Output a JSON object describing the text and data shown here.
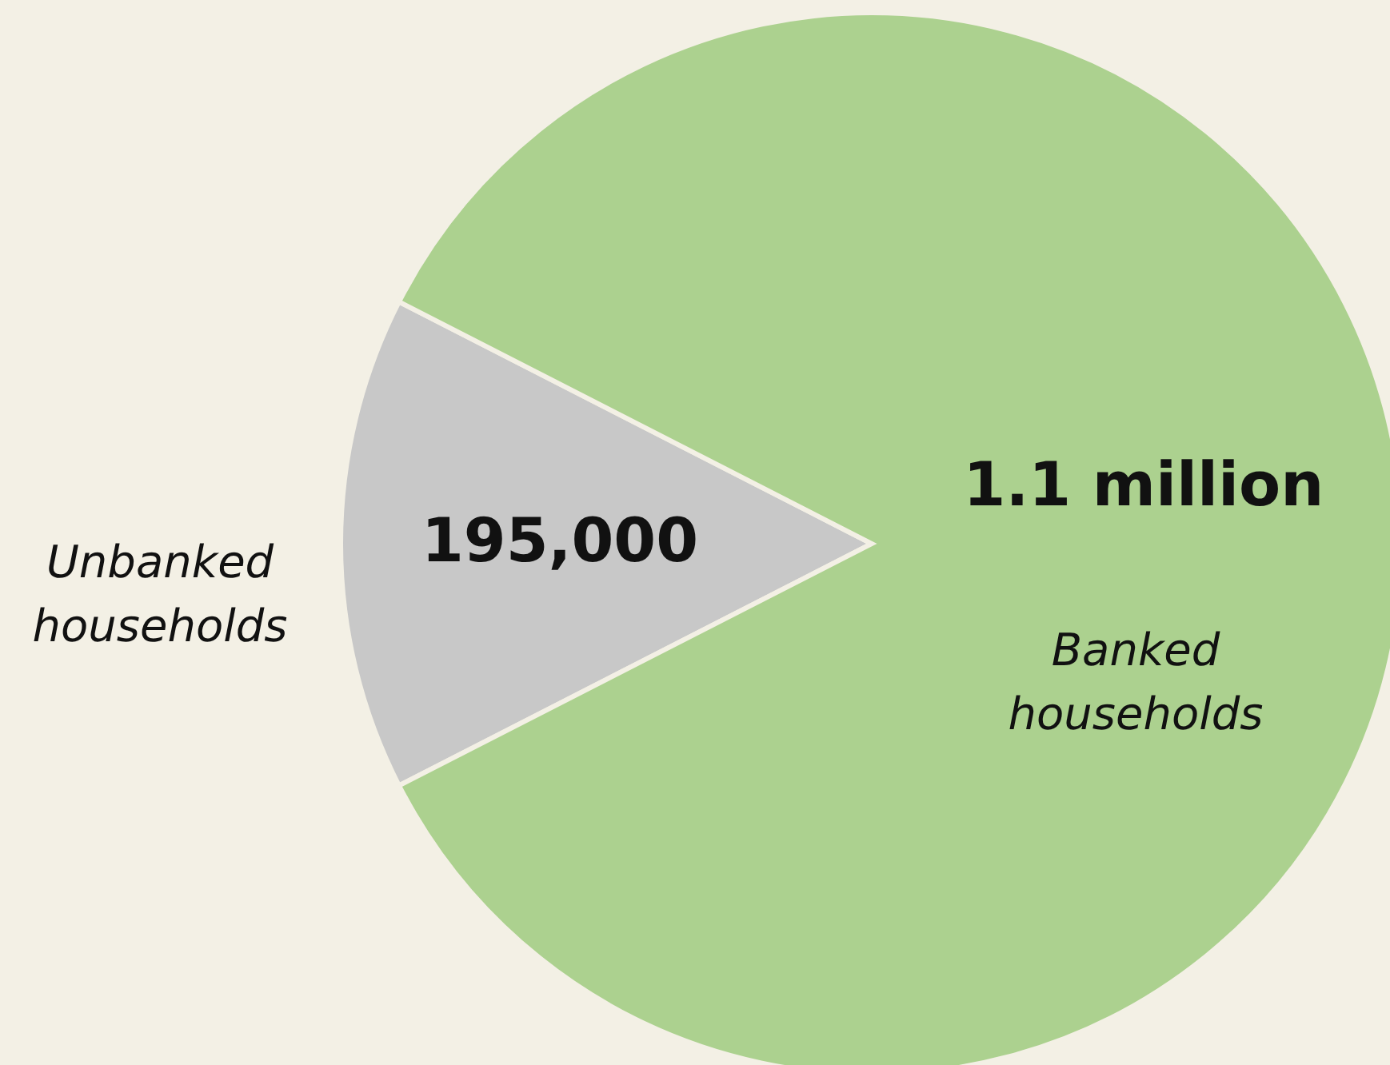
{
  "chart_data": {
    "type": "pie",
    "categories": [
      "Unbanked households",
      "Banked households"
    ],
    "values": [
      195000,
      1100000
    ],
    "value_labels": [
      "195,000",
      "1.1 million"
    ],
    "colors": [
      "#c8c8c8",
      "#acd18f"
    ]
  }
}
